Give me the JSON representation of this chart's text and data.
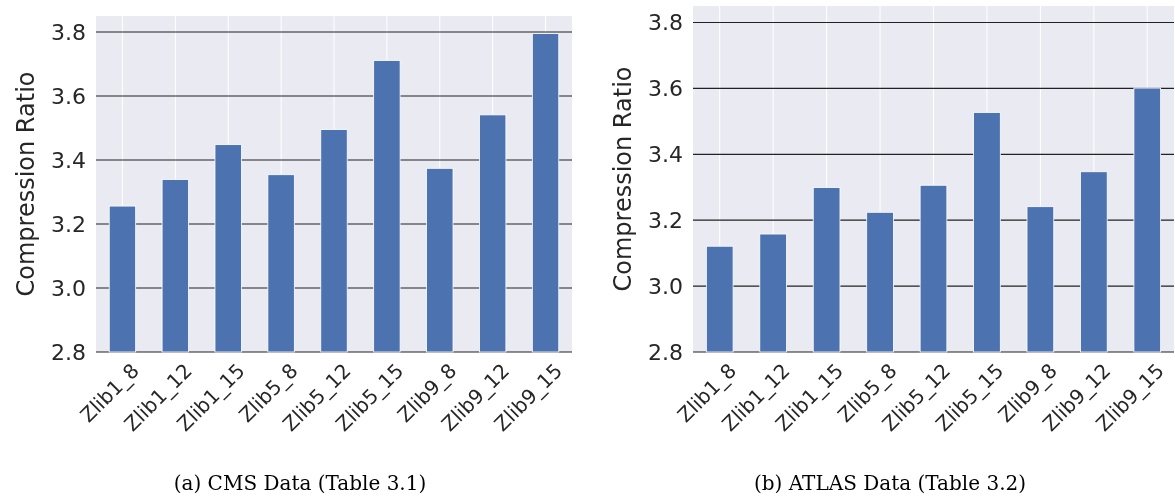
{
  "chart_data": [
    {
      "type": "bar",
      "ylabel": "Compression Ratio",
      "categories": [
        "Zlib1_8",
        "Zlib1_12",
        "Zlib1_15",
        "Zlib5_8",
        "Zlib5_12",
        "Zlib5_15",
        "Zlib9_8",
        "Zlib9_12",
        "Zlib9_15"
      ],
      "values": [
        3.256,
        3.339,
        3.448,
        3.354,
        3.495,
        3.711,
        3.374,
        3.541,
        3.795
      ],
      "color": "#4c72b0",
      "ylim": [
        2.8,
        3.85
      ],
      "yticks": [
        {
          "value": 2.8,
          "label": "2.8"
        },
        {
          "value": 3.0,
          "label": "3.0"
        },
        {
          "value": 3.2,
          "label": "3.2"
        },
        {
          "value": 3.4,
          "label": "3.4"
        },
        {
          "value": 3.6,
          "label": "3.6"
        },
        {
          "value": 3.8,
          "label": "3.8"
        }
      ],
      "grid": true,
      "annotations": [
        "(a) CMS Data (Table 3.1)"
      ]
    },
    {
      "type": "bar",
      "ylabel": "Compression Ratio",
      "categories": [
        "Zlib1_8",
        "Zlib1_12",
        "Zlib1_15",
        "Zlib5_8",
        "Zlib5_12",
        "Zlib5_15",
        "Zlib9_8",
        "Zlib9_12",
        "Zlib9_15"
      ],
      "values": [
        3.121,
        3.158,
        3.299,
        3.224,
        3.306,
        3.527,
        3.241,
        3.347,
        3.601
      ],
      "color": "#4c72b0",
      "ylim": [
        2.8,
        3.85
      ],
      "yticks": [
        {
          "value": 2.8,
          "label": "2.8"
        },
        {
          "value": 3.0,
          "label": "3.0"
        },
        {
          "value": 3.2,
          "label": "3.2"
        },
        {
          "value": 3.4,
          "label": "3.4"
        },
        {
          "value": 3.6,
          "label": "3.6"
        },
        {
          "value": 3.8,
          "label": "3.8"
        }
      ],
      "grid": true,
      "annotations": [
        "(b) ATLAS Data (Table 3.2)"
      ]
    }
  ]
}
